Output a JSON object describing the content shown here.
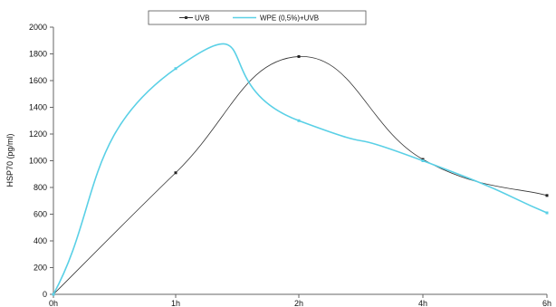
{
  "chart_data": {
    "type": "line",
    "categories": [
      "0h",
      "1h",
      "2h",
      "4h",
      "6h"
    ],
    "ylabel": "HSP70 (pg/ml)",
    "ylim": [
      0,
      2000
    ],
    "yticks": [
      "0",
      "200",
      "400",
      "600",
      "800",
      "1000",
      "1200",
      "1400",
      "1600",
      "1800",
      "2000"
    ],
    "grid": false,
    "legend": "top-center",
    "series": [
      {
        "name": "UVB",
        "color": "#333333",
        "values": [
          0,
          910,
          1780,
          1010,
          740
        ]
      },
      {
        "name": "WPE (0,5%)+UVB",
        "color": "#5ad0e6",
        "values": [
          0,
          1690,
          1300,
          1000,
          610
        ]
      }
    ]
  }
}
